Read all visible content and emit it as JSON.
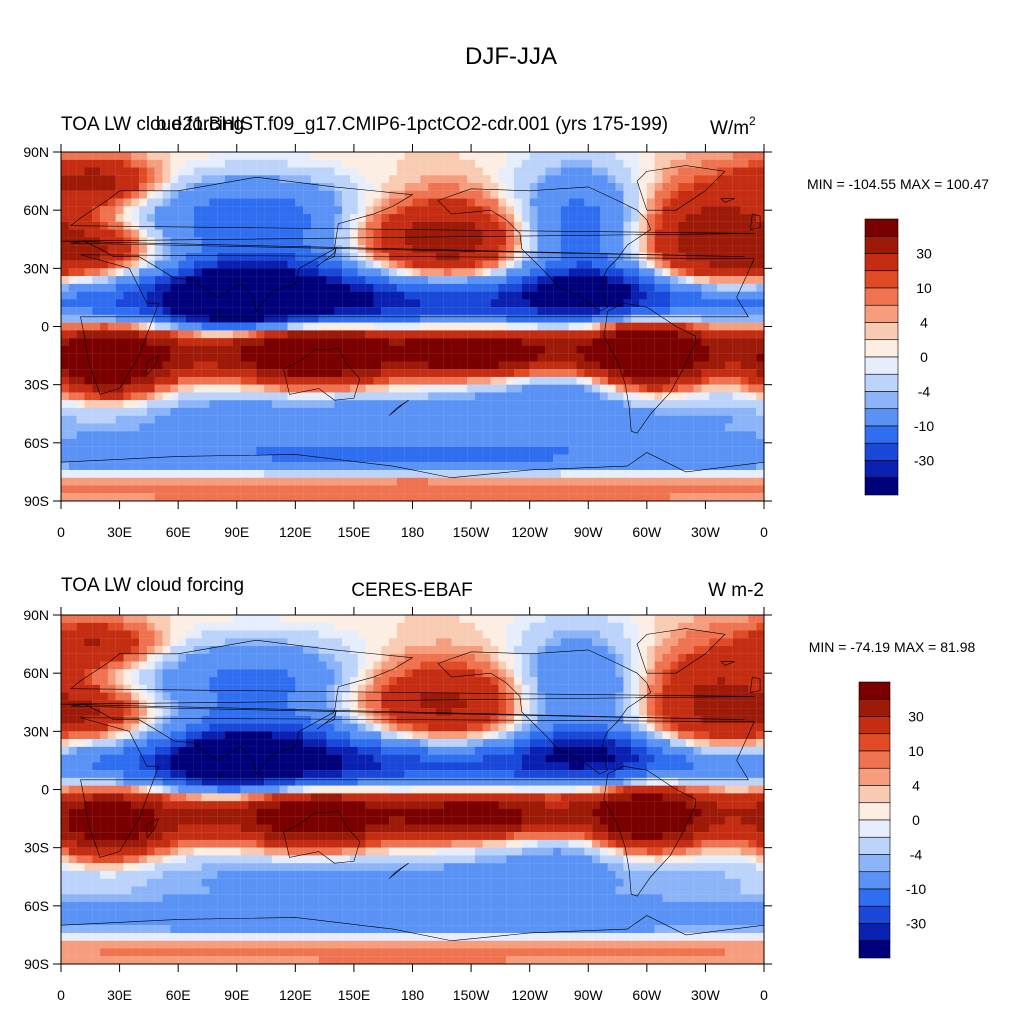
{
  "main_title": "DJF-JJA",
  "colors": {
    "palette": [
      "#00007a",
      "#0a20b0",
      "#1a48d8",
      "#2f6ef0",
      "#5a93f5",
      "#8cb4f8",
      "#bcd3fb",
      "#e6eefd",
      "#fdeee3",
      "#f9cbb3",
      "#f59d7c",
      "#ef7350",
      "#e04a25",
      "#c42d12",
      "#9c1a07",
      "#7a0000"
    ],
    "land": "#000000"
  },
  "colorbar_labels": [
    "30",
    "10",
    "4",
    "0",
    "-4",
    "-10",
    "-30"
  ],
  "panels": [
    {
      "id": "model",
      "left_title": "TOA LW cloud forcing",
      "center_title": "b.e21.BHIST.f09_g17.CMIP6-1pctCO2-cdr.001 (yrs 175-199)",
      "right_title": "W/m",
      "right_title_sup": "2",
      "min_label": "MIN = -104.55",
      "max_label": "MAX = 100.47"
    },
    {
      "id": "obs",
      "left_title": "TOA LW cloud forcing",
      "center_title": "CERES-EBAF",
      "right_title": "W m-2",
      "right_title_sup": "",
      "min_label": "MIN = -74.19",
      "max_label": "MAX =  81.98"
    }
  ],
  "chart_data": [
    {
      "type": "heatmap",
      "title": "TOA LW cloud forcing — b.e21.BHIST.f09_g17.CMIP6-1pctCO2-cdr.001 (yrs 175-199)",
      "units": "W/m2",
      "season": "DJF-JJA",
      "min": -104.55,
      "max": 100.47,
      "x_ticks": [
        "0",
        "30E",
        "60E",
        "90E",
        "120E",
        "150E",
        "180",
        "150W",
        "120W",
        "90W",
        "60W",
        "30W",
        "0"
      ],
      "y_ticks": [
        "90N",
        "60N",
        "30N",
        "0",
        "30S",
        "60S",
        "90S"
      ],
      "xlim": [
        0,
        360
      ],
      "ylim": [
        -90,
        90
      ],
      "contour_levels": [
        -50,
        -40,
        -30,
        -20,
        -10,
        -8,
        -4,
        -2,
        0,
        2,
        4,
        8,
        10,
        20,
        30,
        40,
        50
      ]
    },
    {
      "type": "heatmap",
      "title": "TOA LW cloud forcing — CERES-EBAF",
      "units": "W m-2",
      "season": "DJF-JJA",
      "min": -74.19,
      "max": 81.98,
      "x_ticks": [
        "0",
        "30E",
        "60E",
        "90E",
        "120E",
        "150E",
        "180",
        "150W",
        "120W",
        "90W",
        "60W",
        "30W",
        "0"
      ],
      "y_ticks": [
        "90N",
        "60N",
        "30N",
        "0",
        "30S",
        "60S",
        "90S"
      ],
      "xlim": [
        0,
        360
      ],
      "ylim": [
        -90,
        90
      ],
      "contour_levels": [
        -50,
        -40,
        -30,
        -20,
        -10,
        -8,
        -4,
        -2,
        0,
        2,
        4,
        8,
        10,
        20,
        30,
        40,
        50
      ]
    }
  ]
}
